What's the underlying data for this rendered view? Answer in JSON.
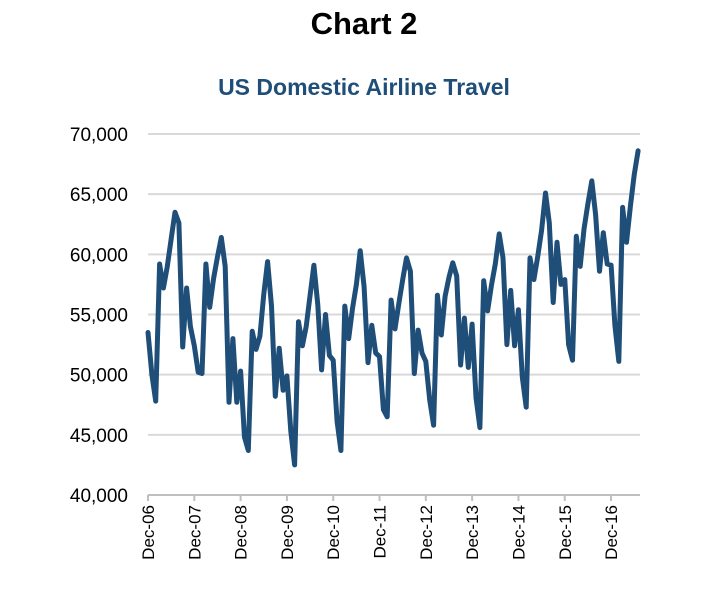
{
  "heading": "Chart 2",
  "chart_data": {
    "type": "line",
    "title": "US Domestic Airline Travel",
    "xlabel": "",
    "ylabel": "",
    "ylim": [
      40000,
      70000
    ],
    "yticks": [
      40000,
      45000,
      50000,
      55000,
      60000,
      65000,
      70000
    ],
    "ytick_labels": [
      "40,000",
      "45,000",
      "50,000",
      "55,000",
      "60,000",
      "65,000",
      "70,000"
    ],
    "x_tick_labels": [
      "Dec-06",
      "Dec-07",
      "Dec-08",
      "Dec-09",
      "Dec-10",
      "Dec-11",
      "Dec-12",
      "Dec-13",
      "Dec-14",
      "Dec-15",
      "Dec-16"
    ],
    "x_start": "Dec-06",
    "x_frequency": "monthly",
    "grid": "horizontal",
    "legend": "none",
    "series": [
      {
        "color": "#1f4e79",
        "values": [
          53500,
          50000,
          47800,
          59200,
          57200,
          59000,
          61300,
          63500,
          62600,
          52300,
          57200,
          54000,
          52400,
          50200,
          50100,
          59200,
          55600,
          58000,
          59800,
          61400,
          59000,
          47700,
          53000,
          47700,
          50300,
          44800,
          43700,
          53600,
          52100,
          53200,
          56700,
          59400,
          55700,
          48200,
          52200,
          48700,
          49900,
          45300,
          42500,
          54400,
          52400,
          54000,
          56600,
          59100,
          55800,
          50400,
          55000,
          51600,
          51200,
          46100,
          43700,
          55700,
          53000,
          55500,
          57500,
          60300,
          57300,
          51000,
          54100,
          51800,
          51500,
          47100,
          46500,
          56200,
          53800,
          55900,
          57900,
          59700,
          58600,
          50100,
          53700,
          51800,
          51100,
          47900,
          45800,
          56600,
          53300,
          56500,
          58100,
          59300,
          58200,
          50800,
          54700,
          50600,
          54200,
          48100,
          45600,
          57800,
          55300,
          57400,
          59200,
          61700,
          59700,
          52500,
          57000,
          52400,
          55400,
          49800,
          47300,
          59700,
          57900,
          59800,
          62000,
          65100,
          62600,
          56000,
          61000,
          57500,
          57900,
          52500,
          51200,
          61500,
          59000,
          62100,
          64200,
          66100,
          63300,
          58600,
          61800,
          59200,
          59100,
          54100,
          51100,
          63900,
          61000,
          64000,
          66600,
          68600
        ]
      }
    ]
  }
}
